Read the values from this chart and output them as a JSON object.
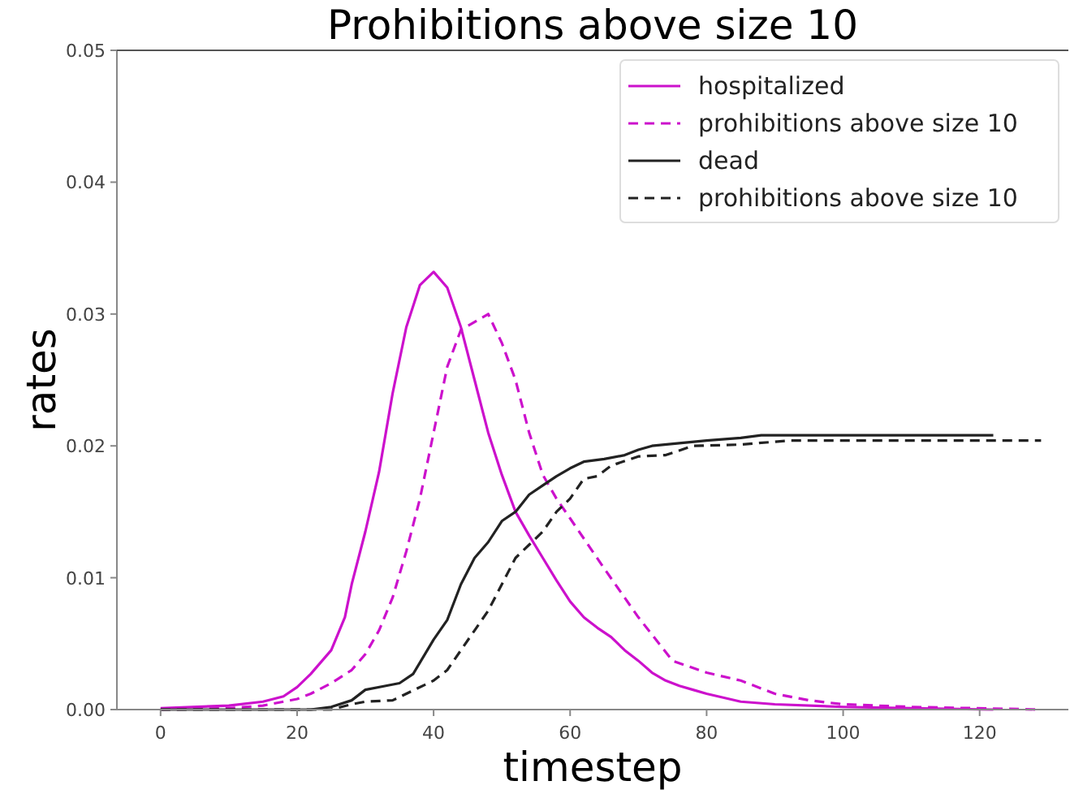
{
  "chart_data": {
    "type": "line",
    "title": "Prohibitions above size 10",
    "xlabel": "timestep",
    "ylabel": "rates",
    "xlim": [
      -6.4,
      133
    ],
    "ylim": [
      0,
      0.05
    ],
    "xticks": [
      0,
      20,
      40,
      60,
      80,
      100,
      120
    ],
    "yticks": [
      {
        "value": 0,
        "label": "0.00"
      },
      0.01,
      0.02,
      0.03,
      0.04,
      0.05
    ],
    "legend": "top right",
    "series": [
      {
        "name": "hospitalized",
        "color": "#cc11cc",
        "line_style": "solid",
        "x": [
          0,
          10,
          15,
          18,
          20,
          22,
          25,
          27,
          28,
          30,
          32,
          34,
          36,
          38,
          40,
          42,
          44,
          46,
          48,
          50,
          52,
          54,
          56,
          58,
          60,
          62,
          64,
          66,
          68,
          70,
          72,
          74,
          76,
          78,
          80,
          85,
          90,
          100,
          110,
          122
        ],
        "values": [
          0.0001,
          0.0003,
          0.0006,
          0.001,
          0.0017,
          0.0027,
          0.0045,
          0.007,
          0.0095,
          0.0135,
          0.018,
          0.024,
          0.029,
          0.0322,
          0.0332,
          0.032,
          0.029,
          0.025,
          0.021,
          0.0178,
          0.015,
          0.0132,
          0.0115,
          0.0098,
          0.0082,
          0.007,
          0.0062,
          0.0055,
          0.0045,
          0.0037,
          0.0028,
          0.0022,
          0.0018,
          0.0015,
          0.0012,
          0.0006,
          0.0004,
          0.0002,
          0.0001,
          0
        ]
      },
      {
        "name": "prohibitions above size 10",
        "color": "#cc11cc",
        "line_style": "dashed",
        "x": [
          0,
          10,
          15,
          20,
          22,
          25,
          28,
          30,
          32,
          34,
          36,
          38,
          40,
          42,
          44,
          46,
          48,
          50,
          52,
          54,
          56,
          58,
          60,
          65,
          70,
          75,
          80,
          85,
          90,
          95,
          100,
          110,
          129
        ],
        "values": [
          0,
          0.0001,
          0.0003,
          0.0008,
          0.0012,
          0.002,
          0.003,
          0.0042,
          0.006,
          0.0085,
          0.012,
          0.016,
          0.021,
          0.026,
          0.0288,
          0.0294,
          0.03,
          0.0278,
          0.025,
          0.021,
          0.0178,
          0.016,
          0.0145,
          0.0107,
          0.007,
          0.0037,
          0.0028,
          0.0022,
          0.0012,
          0.0007,
          0.0004,
          0.0002,
          0
        ]
      },
      {
        "name": "dead",
        "color": "#222222",
        "line_style": "solid",
        "x": [
          0,
          22,
          25,
          28,
          30,
          33,
          35,
          37,
          40,
          42,
          44,
          46,
          48,
          50,
          52,
          54,
          56,
          58,
          60,
          62,
          65,
          68,
          70,
          72,
          76,
          80,
          85,
          88,
          122
        ],
        "values": [
          0,
          0,
          0.0002,
          0.0007,
          0.0015,
          0.0018,
          0.002,
          0.0027,
          0.0053,
          0.0068,
          0.0095,
          0.0115,
          0.0127,
          0.0143,
          0.015,
          0.0163,
          0.017,
          0.0177,
          0.0183,
          0.0188,
          0.019,
          0.0193,
          0.0197,
          0.02,
          0.0202,
          0.0204,
          0.0206,
          0.0208,
          0.0208
        ]
      },
      {
        "name": "prohibitions above size 10",
        "color": "#222222",
        "line_style": "dashed",
        "x": [
          0,
          25,
          28,
          30,
          34,
          36,
          40,
          42,
          44,
          46,
          48,
          50,
          52,
          54,
          56,
          58,
          60,
          62,
          64,
          66,
          70,
          74,
          78,
          85,
          92,
          129
        ],
        "values": [
          0,
          0,
          0.0004,
          0.0006,
          0.0007,
          0.0012,
          0.0022,
          0.003,
          0.0045,
          0.006,
          0.0075,
          0.0095,
          0.0115,
          0.0125,
          0.0135,
          0.015,
          0.016,
          0.0175,
          0.0177,
          0.0185,
          0.0192,
          0.0193,
          0.02,
          0.0201,
          0.0204,
          0.0204
        ]
      }
    ]
  }
}
